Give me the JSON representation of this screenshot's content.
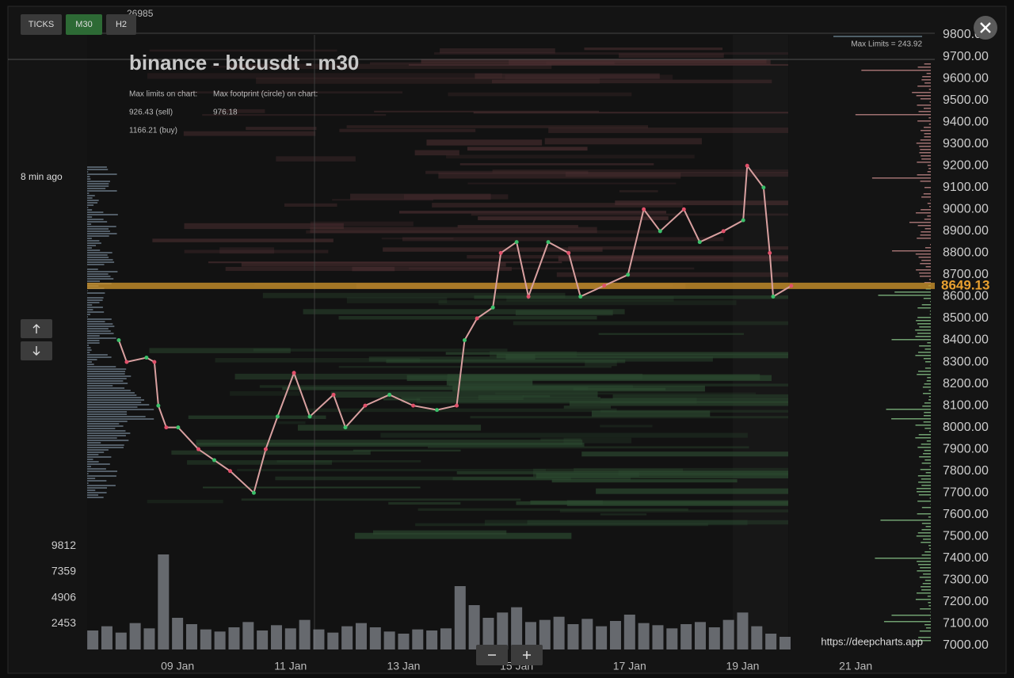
{
  "chart_data": [
    {
      "type": "line",
      "color": "#d9a0a0",
      "x": [
        7.96,
        8.1,
        8.45,
        8.59,
        8.66,
        8.8,
        9.01,
        9.37,
        9.65,
        9.93,
        10.35,
        10.56,
        10.77,
        11.06,
        11.34,
        11.76,
        11.97,
        12.32,
        12.75,
        13.17,
        13.59,
        13.94,
        14.08,
        14.3,
        14.58,
        14.72,
        15.0,
        15.21,
        15.56,
        15.92,
        16.13,
        16.55,
        16.97,
        17.25,
        17.54,
        17.96,
        18.24,
        18.66,
        19.01,
        19.08,
        19.37,
        19.48,
        19.54,
        19.86
      ],
      "values": [
        8400,
        8300,
        8320,
        8300,
        8100,
        8000,
        8000,
        7900,
        7850,
        7800,
        7700,
        7900,
        8050,
        8250,
        8050,
        8150,
        8000,
        8100,
        8150,
        8100,
        8080,
        8100,
        8400,
        8500,
        8550,
        8800,
        8850,
        8600,
        8850,
        8800,
        8600,
        8650,
        8700,
        9000,
        8900,
        9000,
        8850,
        8900,
        8950,
        9200,
        9100,
        8800,
        8600,
        8649
      ],
      "current_price": 8649.13,
      "xlim": [
        7.4,
        22.4
      ],
      "xticks": [
        {
          "value": 9,
          "label": "09 Jan"
        },
        {
          "value": 11,
          "label": "11 Jan"
        },
        {
          "value": 13,
          "label": "13 Jan"
        },
        {
          "value": 15,
          "label": "15 Jan"
        },
        {
          "value": 17,
          "label": "17 Jan"
        },
        {
          "value": 19,
          "label": "19 Jan"
        },
        {
          "value": 21,
          "label": "21 Jan"
        }
      ],
      "ylim": [
        7000,
        9800
      ],
      "yticks": [
        {
          "value": 7000,
          "label": "7000.00"
        },
        {
          "value": 7100,
          "label": "7100.00"
        },
        {
          "value": 7200,
          "label": "7200.00"
        },
        {
          "value": 7300,
          "label": "7300.00"
        },
        {
          "value": 7400,
          "label": "7400.00"
        },
        {
          "value": 7500,
          "label": "7500.00"
        },
        {
          "value": 7600,
          "label": "7600.00"
        },
        {
          "value": 7700,
          "label": "7700.00"
        },
        {
          "value": 7800,
          "label": "7800.00"
        },
        {
          "value": 7900,
          "label": "7900.00"
        },
        {
          "value": 8000,
          "label": "8000.00"
        },
        {
          "value": 8100,
          "label": "8100.00"
        },
        {
          "value": 8200,
          "label": "8200.00"
        },
        {
          "value": 8300,
          "label": "8300.00"
        },
        {
          "value": 8400,
          "label": "8400.00"
        },
        {
          "value": 8500,
          "label": "8500.00"
        },
        {
          "value": 8600,
          "label": "8600.00"
        },
        {
          "value": 8700,
          "label": "8700.00"
        },
        {
          "value": 8800,
          "label": "8800.00"
        },
        {
          "value": 8900,
          "label": "8900.00"
        },
        {
          "value": 9000,
          "label": "9000.00"
        },
        {
          "value": 9100,
          "label": "9100.00"
        },
        {
          "value": 9200,
          "label": "9200.00"
        },
        {
          "value": 9300,
          "label": "9300.00"
        },
        {
          "value": 9400,
          "label": "9400.00"
        },
        {
          "value": 9500,
          "label": "9500.00"
        },
        {
          "value": 9600,
          "label": "9600.00"
        },
        {
          "value": 9700,
          "label": "9700.00"
        },
        {
          "value": 9800,
          "label": "9800.00"
        }
      ]
    },
    {
      "type": "bar",
      "color": "#8a8f96",
      "x": [
        7.5,
        7.75,
        8,
        8.25,
        8.5,
        8.75,
        9,
        9.25,
        9.5,
        9.75,
        10,
        10.25,
        10.5,
        10.75,
        11,
        11.25,
        11.5,
        11.75,
        12,
        12.25,
        12.5,
        12.75,
        13,
        13.25,
        13.5,
        13.75,
        14,
        14.25,
        14.5,
        14.75,
        15,
        15.25,
        15.5,
        15.75,
        16,
        16.25,
        16.5,
        16.75,
        17,
        17.25,
        17.5,
        17.75,
        18,
        18.25,
        18.5,
        18.75,
        19,
        19.25,
        19.5,
        19.75
      ],
      "values": [
        1800,
        2200,
        1600,
        2500,
        2000,
        9000,
        3000,
        2400,
        1900,
        1700,
        2100,
        2600,
        1800,
        2300,
        2000,
        2800,
        1900,
        1600,
        2200,
        2500,
        2100,
        1700,
        1500,
        1900,
        1800,
        2000,
        6000,
        4200,
        3000,
        3500,
        4000,
        2600,
        2800,
        3100,
        2400,
        2900,
        2200,
        2700,
        3300,
        2500,
        2300,
        2000,
        2400,
        2600,
        2100,
        2800,
        3500,
        2200,
        1500,
        1200
      ],
      "xlim": [
        7.4,
        22.4
      ],
      "ylim": [
        0,
        10500
      ],
      "yticks": [
        2453,
        4906,
        7359,
        9812
      ]
    }
  ],
  "ui": {
    "buttons": [
      "TICKS",
      "M30",
      "H2"
    ],
    "counter": "26985",
    "title": "binance - btcusdt - m30",
    "info_labels": [
      "Max limits on chart:",
      "Max footprint (circle) on chart:"
    ],
    "info_values": [
      "926.43 (sell)",
      "976.18",
      "1166.21 (buy)"
    ],
    "updated": "8 min ago",
    "max_limits": "Max Limits = 243.92",
    "source": "https://deepcharts.app"
  }
}
